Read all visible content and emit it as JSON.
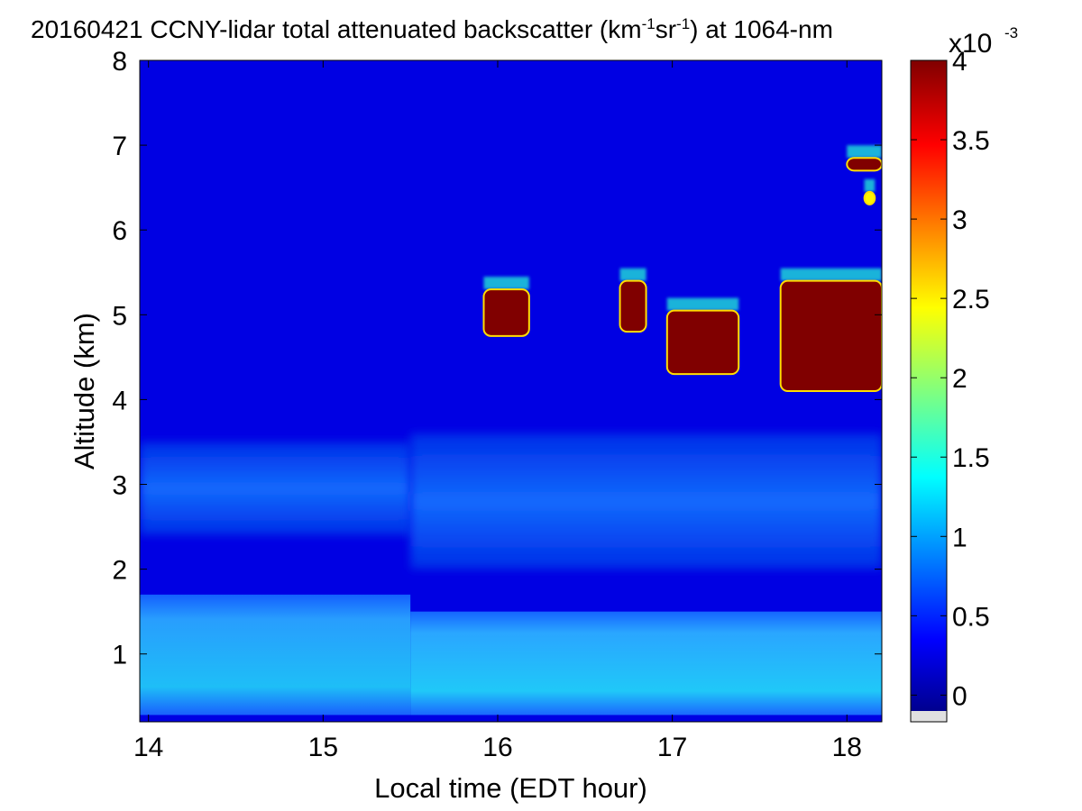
{
  "chart_data": {
    "type": "heatmap",
    "title": {
      "parts": [
        "20160421 CCNY-lidar total attenuated backscatter (km",
        "-1",
        "sr",
        "-1",
        ") at 1064-nm"
      ]
    },
    "xlabel": "Local time (EDT hour)",
    "ylabel": "Altitude (km)",
    "xlim": [
      13.95,
      18.2
    ],
    "ylim": [
      0.2,
      8
    ],
    "x_ticks": [
      14,
      15,
      16,
      17,
      18
    ],
    "y_ticks": [
      1,
      2,
      3,
      4,
      5,
      6,
      7,
      8
    ],
    "x_tick_labels": [
      "14",
      "15",
      "16",
      "17",
      "18"
    ],
    "y_tick_labels": [
      "1",
      "2",
      "3",
      "4",
      "5",
      "6",
      "7",
      "8"
    ],
    "colorbar": {
      "colormap": "jet",
      "range": [
        -0.1,
        4
      ],
      "ticks": [
        0,
        0.5,
        1,
        1.5,
        2,
        2.5,
        3,
        3.5,
        4
      ],
      "tick_labels": [
        "0",
        "0.5",
        "1",
        "1.5",
        "2",
        "2.5",
        "3",
        "3.5",
        "4"
      ],
      "exponent_base": "x10",
      "exponent": "-3"
    },
    "background_value": 0.3,
    "layers": [
      {
        "feature": "surface aerosol layer",
        "x": [
          13.95,
          15.5
        ],
        "y": [
          0.25,
          1.7
        ],
        "value": 1.3
      },
      {
        "feature": "surface aerosol layer",
        "x": [
          15.5,
          18.2
        ],
        "y": [
          0.25,
          1.5
        ],
        "value": 1.7
      },
      {
        "feature": "residual aerosol layer",
        "x": [
          13.95,
          15.5
        ],
        "y": [
          2.4,
          3.5
        ],
        "value": 0.9
      },
      {
        "feature": "residual aerosol layer",
        "x": [
          15.5,
          18.2
        ],
        "y": [
          2.0,
          3.6
        ],
        "value": 1.1
      },
      {
        "feature": "cloud",
        "x": [
          15.92,
          16.18
        ],
        "y": [
          4.75,
          5.3
        ],
        "value": 4
      },
      {
        "feature": "cloud",
        "x": [
          16.7,
          16.85
        ],
        "y": [
          4.8,
          5.4
        ],
        "value": 4
      },
      {
        "feature": "cloud",
        "x": [
          16.97,
          17.38
        ],
        "y": [
          4.3,
          5.05
        ],
        "value": 4
      },
      {
        "feature": "cloud",
        "x": [
          17.62,
          18.2
        ],
        "y": [
          4.1,
          5.4
        ],
        "value": 4
      },
      {
        "feature": "cloud",
        "x": [
          18.0,
          18.2
        ],
        "y": [
          6.7,
          6.85
        ],
        "value": 4
      },
      {
        "feature": "cloud",
        "x": [
          18.1,
          18.16
        ],
        "y": [
          6.3,
          6.45
        ],
        "value": 2.5
      }
    ]
  },
  "colors": {
    "jet_dark_red": "#800000",
    "background_blue": "#0022dd",
    "missing_data": "#e0e0e0"
  }
}
